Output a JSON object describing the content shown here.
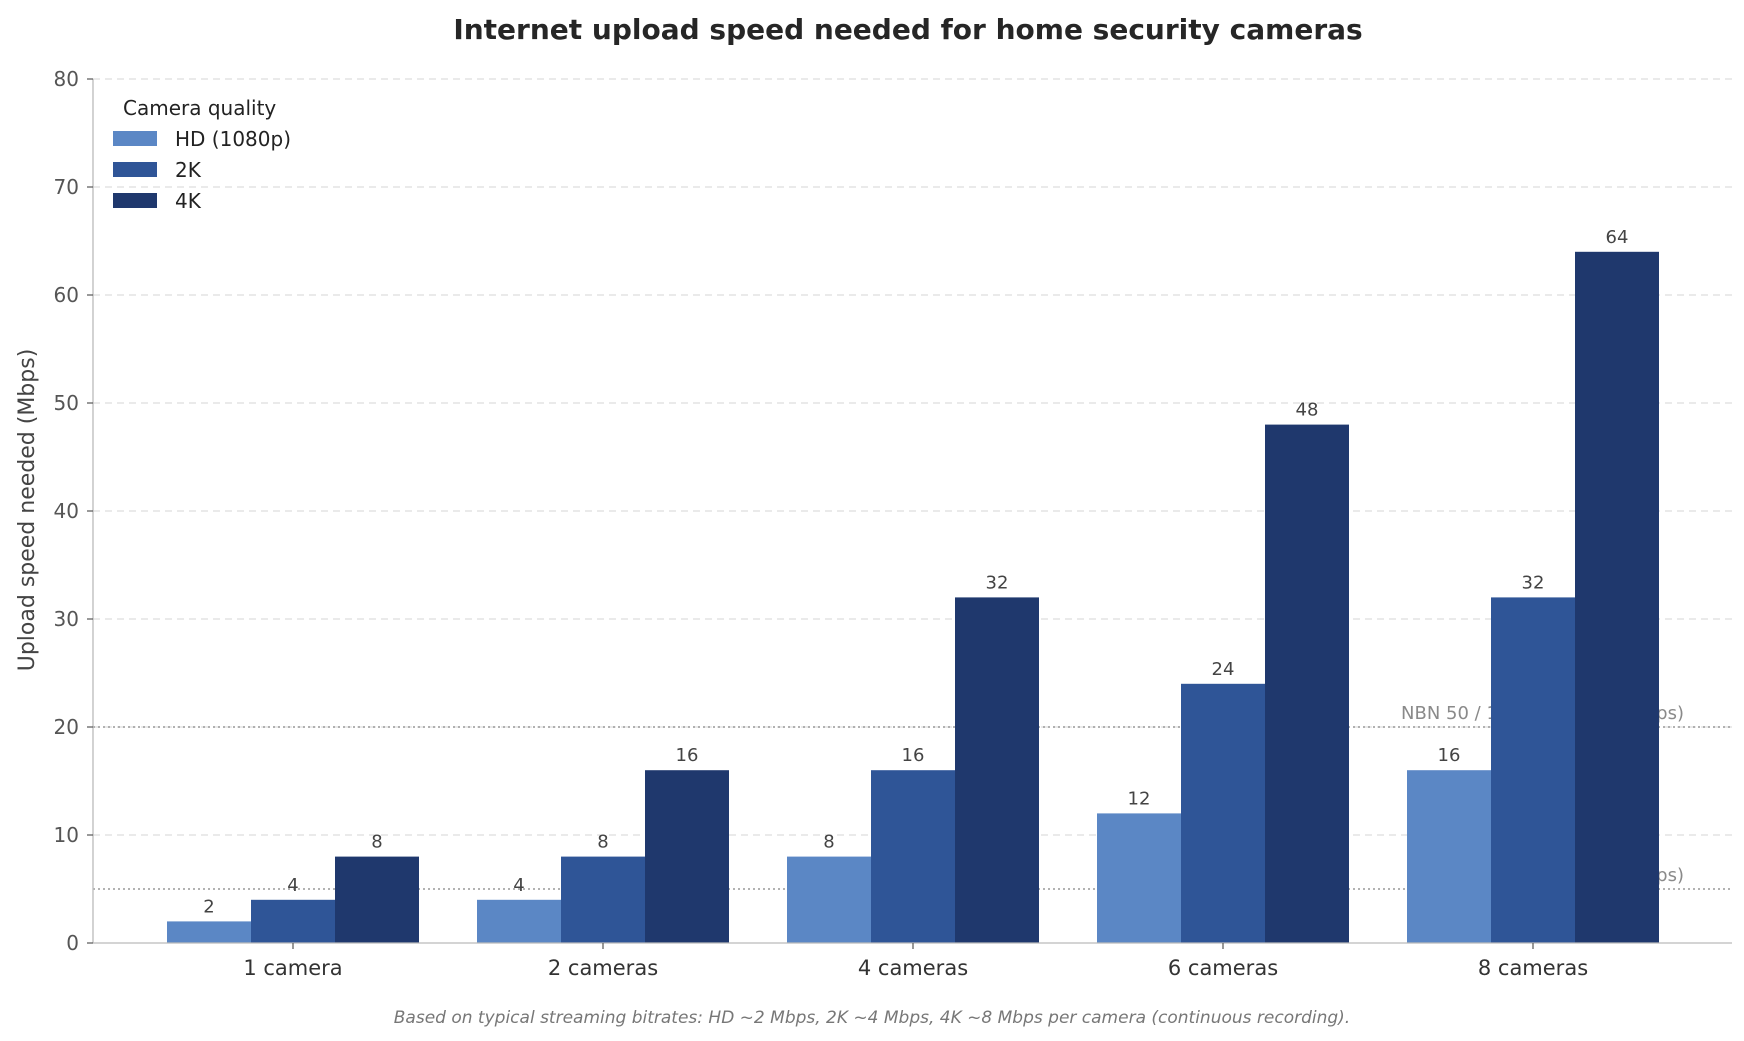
{
  "chart_data": {
    "type": "bar",
    "title": "Internet upload speed needed for home security cameras",
    "xlabel": "",
    "ylabel": "Upload speed needed (Mbps)",
    "ylim": [
      0,
      80
    ],
    "yticks": [
      0,
      10,
      20,
      30,
      40,
      50,
      60,
      70,
      80
    ],
    "grid": "horizontal, dashed",
    "categories": [
      "1 camera",
      "2 cameras",
      "4 cameras",
      "6 cameras",
      "8 cameras"
    ],
    "legend": {
      "title": "Camera quality",
      "placement": "top-left"
    },
    "series": [
      {
        "name": "HD (1080p)",
        "color": "#5b87c5",
        "values": [
          2,
          4,
          8,
          12,
          16
        ]
      },
      {
        "name": "2K",
        "color": "#2f5597",
        "values": [
          4,
          8,
          16,
          24,
          32
        ]
      },
      {
        "name": "4K",
        "color": "#1f386d",
        "values": [
          8,
          16,
          32,
          48,
          64
        ]
      }
    ],
    "reference_lines": [
      {
        "label": "NBN 50 / 100 upload (20 Mbps)",
        "value": 20
      },
      {
        "label": "NBN 25 upload (5 Mbps)",
        "value": 5
      }
    ],
    "footnote": "Based on typical streaming bitrates: HD ~2 Mbps, 2K ~4 Mbps, 4K ~8 Mbps per camera (continuous recording)."
  }
}
